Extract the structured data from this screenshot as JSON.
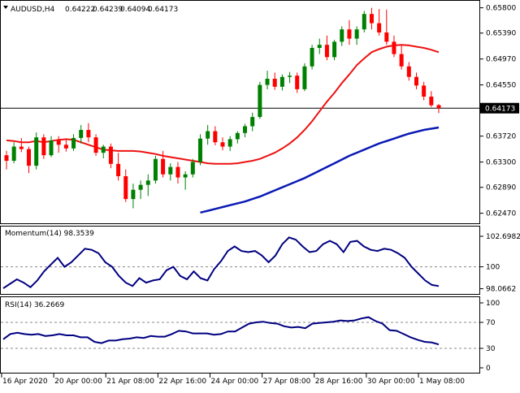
{
  "chart_data": [
    {
      "type": "candlestick",
      "title": "AUDUSD,H4",
      "ohlc_header": {
        "open": "0.64222",
        "high": "0.64239",
        "low": "0.64094",
        "close": "0.64173"
      },
      "last_price_label": "0.64173",
      "last_price": 0.64173,
      "ylim": [
        0.6232,
        0.659
      ],
      "yticks": [
        "0.65800",
        "0.65390",
        "0.64970",
        "0.64550",
        "0.63720",
        "0.63300",
        "0.62890",
        "0.62470"
      ],
      "candles": [
        [
          0.6341,
          0.6348,
          0.6318,
          0.6332
        ],
        [
          0.6332,
          0.6362,
          0.6328,
          0.6355
        ],
        [
          0.6355,
          0.6369,
          0.6346,
          0.6351
        ],
        [
          0.6351,
          0.6355,
          0.6312,
          0.6324
        ],
        [
          0.6324,
          0.6378,
          0.6318,
          0.637
        ],
        [
          0.637,
          0.6375,
          0.6335,
          0.6341
        ],
        [
          0.6341,
          0.6372,
          0.6338,
          0.6365
        ],
        [
          0.6365,
          0.6372,
          0.6345,
          0.6358
        ],
        [
          0.6358,
          0.6367,
          0.6347,
          0.6352
        ],
        [
          0.6352,
          0.6375,
          0.6348,
          0.6369
        ],
        [
          0.6369,
          0.639,
          0.636,
          0.6382
        ],
        [
          0.6382,
          0.6393,
          0.6362,
          0.637
        ],
        [
          0.637,
          0.6375,
          0.634,
          0.6345
        ],
        [
          0.6345,
          0.6358,
          0.6336,
          0.6355
        ],
        [
          0.6355,
          0.636,
          0.632,
          0.6327
        ],
        [
          0.6327,
          0.6345,
          0.63,
          0.6307
        ],
        [
          0.6307,
          0.6318,
          0.6265,
          0.627
        ],
        [
          0.627,
          0.6295,
          0.6255,
          0.6285
        ],
        [
          0.6285,
          0.63,
          0.627,
          0.6293
        ],
        [
          0.6293,
          0.631,
          0.6275,
          0.63
        ],
        [
          0.63,
          0.634,
          0.6295,
          0.6335
        ],
        [
          0.6335,
          0.6348,
          0.6305,
          0.631
        ],
        [
          0.631,
          0.6328,
          0.63,
          0.6322
        ],
        [
          0.6322,
          0.633,
          0.6295,
          0.6305
        ],
        [
          0.6305,
          0.6315,
          0.6285,
          0.631
        ],
        [
          0.631,
          0.6335,
          0.6305,
          0.633
        ],
        [
          0.633,
          0.6375,
          0.6325,
          0.6368
        ],
        [
          0.6368,
          0.639,
          0.6358,
          0.638
        ],
        [
          0.638,
          0.6388,
          0.6357,
          0.6362
        ],
        [
          0.6362,
          0.637,
          0.6349,
          0.6355
        ],
        [
          0.6355,
          0.6372,
          0.6348,
          0.6367
        ],
        [
          0.6367,
          0.638,
          0.636,
          0.6377
        ],
        [
          0.6377,
          0.6392,
          0.637,
          0.6388
        ],
        [
          0.6388,
          0.641,
          0.638,
          0.6403
        ],
        [
          0.6403,
          0.646,
          0.64,
          0.6455
        ],
        [
          0.6455,
          0.6478,
          0.6448,
          0.6465
        ],
        [
          0.6465,
          0.6475,
          0.6447,
          0.6452
        ],
        [
          0.6452,
          0.6472,
          0.6446,
          0.6468
        ],
        [
          0.6468,
          0.6476,
          0.6458,
          0.647
        ],
        [
          0.647,
          0.6475,
          0.6442,
          0.6448
        ],
        [
          0.6448,
          0.649,
          0.6445,
          0.6485
        ],
        [
          0.6485,
          0.652,
          0.648,
          0.6515
        ],
        [
          0.6515,
          0.653,
          0.6505,
          0.652
        ],
        [
          0.652,
          0.6535,
          0.6495,
          0.65
        ],
        [
          0.65,
          0.6528,
          0.6495,
          0.6525
        ],
        [
          0.6525,
          0.655,
          0.6518,
          0.6545
        ],
        [
          0.6545,
          0.656,
          0.652,
          0.653
        ],
        [
          0.653,
          0.655,
          0.652,
          0.6545
        ],
        [
          0.6545,
          0.6575,
          0.654,
          0.657
        ],
        [
          0.657,
          0.658,
          0.6545,
          0.6555
        ],
        [
          0.6555,
          0.6578,
          0.6535,
          0.654
        ],
        [
          0.654,
          0.6577,
          0.652,
          0.6525
        ],
        [
          0.6525,
          0.6535,
          0.65,
          0.6505
        ],
        [
          0.6505,
          0.652,
          0.648,
          0.6485
        ],
        [
          0.6485,
          0.6492,
          0.6462,
          0.6468
        ],
        [
          0.6468,
          0.6475,
          0.6448,
          0.6454
        ],
        [
          0.6454,
          0.646,
          0.643,
          0.6436
        ],
        [
          0.6436,
          0.6445,
          0.6419,
          0.6422
        ],
        [
          0.64222,
          0.64239,
          0.64094,
          0.64173
        ]
      ],
      "ma_red": [
        0.6365,
        0.6364,
        0.6362,
        0.6362,
        0.6364,
        0.6362,
        0.6364,
        0.6366,
        0.6367,
        0.6366,
        0.6362,
        0.6358,
        0.6354,
        0.635,
        0.6349,
        0.6348,
        0.6348,
        0.6348,
        0.6347,
        0.6345,
        0.6343,
        0.634,
        0.6338,
        0.6336,
        0.6334,
        0.6332,
        0.633,
        0.6328,
        0.6327,
        0.6327,
        0.6327,
        0.6328,
        0.633,
        0.6332,
        0.6335,
        0.634,
        0.6345,
        0.6352,
        0.636,
        0.637,
        0.6382,
        0.6396,
        0.6412,
        0.6428,
        0.6442,
        0.6458,
        0.6472,
        0.6487,
        0.6498,
        0.6508,
        0.6513,
        0.6517,
        0.6519,
        0.652,
        0.6519,
        0.6517,
        0.6515,
        0.6512,
        0.6508
      ],
      "ma_blue": [
        null,
        null,
        null,
        null,
        null,
        null,
        null,
        null,
        null,
        null,
        null,
        null,
        null,
        null,
        null,
        null,
        null,
        null,
        null,
        null,
        null,
        null,
        null,
        null,
        null,
        null,
        0.6248,
        0.6251,
        0.6254,
        0.6257,
        0.626,
        0.6263,
        0.6266,
        0.627,
        0.6274,
        0.6279,
        0.6284,
        0.6289,
        0.6294,
        0.6299,
        0.6304,
        0.631,
        0.6316,
        0.6322,
        0.6328,
        0.6334,
        0.634,
        0.6345,
        0.635,
        0.6355,
        0.636,
        0.6364,
        0.6368,
        0.6372,
        0.6376,
        0.6379,
        0.6382,
        0.6384,
        0.6386
      ]
    },
    {
      "type": "line",
      "title": "Momentum(14) 98.3539",
      "ylim": [
        97.75,
        103.2
      ],
      "yticks": [
        "102.6982",
        "100",
        "98.0662"
      ],
      "values": [
        98.1,
        98.5,
        98.9,
        98.6,
        98.2,
        98.8,
        99.6,
        100.2,
        100.8,
        100.0,
        100.4,
        101.0,
        101.6,
        101.5,
        101.2,
        100.4,
        100.0,
        99.2,
        98.6,
        98.3,
        99.0,
        98.6,
        98.8,
        98.9,
        99.7,
        100.0,
        99.2,
        98.9,
        99.6,
        99.0,
        98.8,
        99.8,
        100.5,
        101.4,
        101.8,
        101.4,
        101.3,
        101.4,
        101.0,
        100.4,
        101.0,
        102.0,
        102.6,
        102.4,
        101.8,
        101.3,
        101.4,
        102.0,
        102.3,
        102.0,
        101.3,
        102.2,
        102.3,
        101.8,
        101.5,
        101.4,
        101.6,
        101.5,
        101.2,
        100.8,
        100.0,
        99.4,
        98.8,
        98.4,
        98.3
      ]
    },
    {
      "type": "line",
      "title": "RSI(14) 36.2669",
      "ylim": [
        0,
        100
      ],
      "yticks": [
        "100",
        "70",
        "30",
        "0"
      ],
      "values": [
        44,
        52,
        54,
        52,
        51,
        52,
        49,
        50,
        52,
        50,
        50,
        47,
        47,
        40,
        38,
        42,
        42,
        44,
        45,
        47,
        46,
        49,
        48,
        48,
        52,
        57,
        56,
        53,
        53,
        53,
        51,
        52,
        56,
        56,
        62,
        68,
        70,
        71,
        69,
        68,
        64,
        62,
        63,
        61,
        68,
        69,
        70,
        71,
        73,
        72,
        73,
        76,
        78,
        72,
        68,
        58,
        57,
        52,
        47,
        43,
        40,
        39,
        36
      ]
    }
  ],
  "x_axis_labels": [
    "16 Apr 2020",
    "20 Apr 00:00",
    "21 Apr 08:00",
    "22 Apr 16:00",
    "24 Apr 00:00",
    "27 Apr 08:00",
    "28 Apr 16:00",
    "30 Apr 00:00",
    "1 May 08:00"
  ],
  "colors": {
    "up": "#008000",
    "down": "#ff0000",
    "ma_fast": "#ee1111",
    "ma_slow": "#0a19b4",
    "indicator": "#000080",
    "last_price_line": "#000000"
  }
}
